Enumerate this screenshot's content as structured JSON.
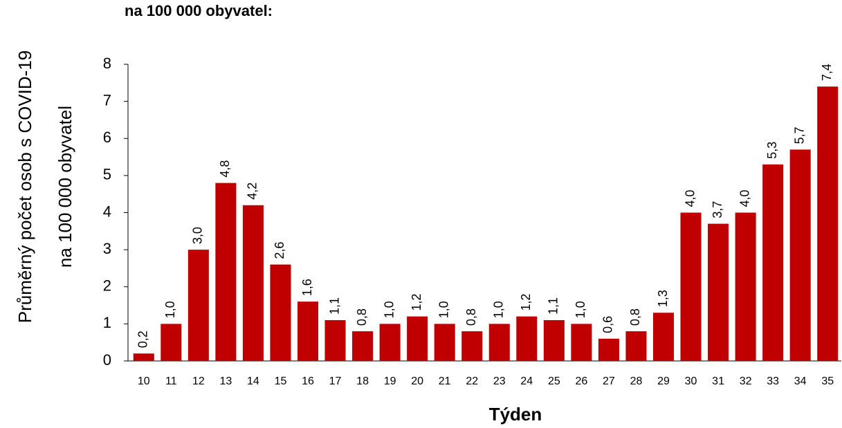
{
  "chart_data": {
    "type": "bar",
    "title": "na 100 000 obyvatel:",
    "y_label": [
      "Průměrný počet osob s COVID-19",
      "na 100 000 obyvatel"
    ],
    "x_label": "Týden",
    "categories": [
      "10",
      "11",
      "12",
      "13",
      "14",
      "15",
      "16",
      "17",
      "18",
      "19",
      "20",
      "21",
      "22",
      "23",
      "24",
      "25",
      "26",
      "27",
      "28",
      "29",
      "30",
      "31",
      "32",
      "33",
      "34",
      "35"
    ],
    "values": [
      0.2,
      1.0,
      3.0,
      4.8,
      4.2,
      2.6,
      1.6,
      1.1,
      0.8,
      1.0,
      1.2,
      1.0,
      0.8,
      1.0,
      1.2,
      1.1,
      1.0,
      0.6,
      0.8,
      1.3,
      4.0,
      3.7,
      4.0,
      5.3,
      5.7,
      7.4
    ],
    "value_labels": [
      "0,2",
      "1,0",
      "3,0",
      "4,8",
      "4,2",
      "2,6",
      "1,6",
      "1,1",
      "0,8",
      "1,0",
      "1,2",
      "1,0",
      "0,8",
      "1,0",
      "1,2",
      "1,1",
      "1,0",
      "0,6",
      "0,8",
      "1,3",
      "4,0",
      "3,7",
      "4,0",
      "5,3",
      "5,7",
      "7,4"
    ],
    "color": "#c00000",
    "ylim": [
      0,
      8
    ],
    "yticks": [
      0,
      1,
      2,
      3,
      4,
      5,
      6,
      7,
      8
    ],
    "grid": false
  }
}
